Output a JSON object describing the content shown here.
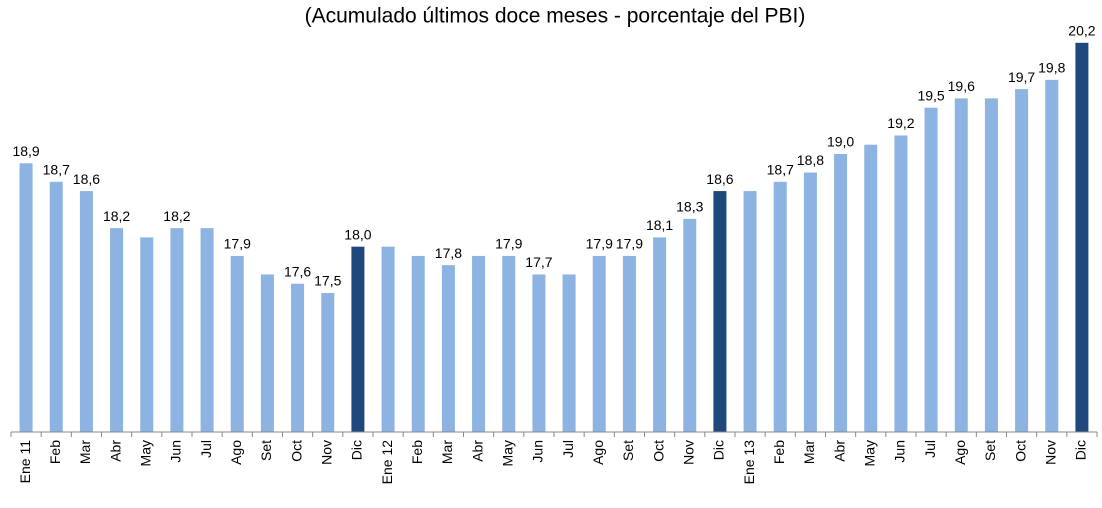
{
  "chart_data": {
    "type": "bar",
    "title": "(Acumulado últimos doce meses - porcentaje del PBI)",
    "categories": [
      "Ene 11",
      "Feb",
      "Mar",
      "Abr",
      "May",
      "Jun",
      "Jul",
      "Ago",
      "Set",
      "Oct",
      "Nov",
      "Dic",
      "Ene 12",
      "Feb",
      "Mar",
      "Abr",
      "May",
      "Jun",
      "Jul",
      "Ago",
      "Set",
      "Oct",
      "Nov",
      "Dic",
      "Ene 13",
      "Feb",
      "Mar",
      "Abr",
      "May",
      "Jun",
      "Jul",
      "Ago",
      "Set",
      "Oct",
      "Nov",
      "Dic"
    ],
    "values": [
      18.9,
      18.7,
      18.6,
      18.2,
      18.1,
      18.2,
      18.2,
      17.9,
      17.7,
      17.6,
      17.5,
      18.0,
      18.0,
      17.9,
      17.8,
      17.9,
      17.9,
      17.7,
      17.7,
      17.9,
      17.9,
      18.1,
      18.3,
      18.6,
      18.6,
      18.7,
      18.8,
      19.0,
      19.1,
      19.2,
      19.5,
      19.6,
      19.6,
      19.7,
      19.8,
      20.2
    ],
    "value_labels": [
      "18,9",
      "18,7",
      "18,6",
      "18,2",
      null,
      "18,2",
      null,
      "17,9",
      null,
      "17,6",
      "17,5",
      "18,0",
      null,
      null,
      "17,8",
      null,
      "17,9",
      "17,7",
      null,
      "17,9",
      "17,9",
      "18,1",
      "18,3",
      "18,6",
      null,
      "18,7",
      "18,8",
      "19,0",
      null,
      "19,2",
      "19,5",
      "19,6",
      null,
      "19,7",
      "19,8",
      "20,2"
    ],
    "colors": [
      "#8db3e2",
      "#8db3e2",
      "#8db3e2",
      "#8db3e2",
      "#8db3e2",
      "#8db3e2",
      "#8db3e2",
      "#8db3e2",
      "#8db3e2",
      "#8db3e2",
      "#8db3e2",
      "#1f497d",
      "#8db3e2",
      "#8db3e2",
      "#8db3e2",
      "#8db3e2",
      "#8db3e2",
      "#8db3e2",
      "#8db3e2",
      "#8db3e2",
      "#8db3e2",
      "#8db3e2",
      "#8db3e2",
      "#1f497d",
      "#8db3e2",
      "#8db3e2",
      "#8db3e2",
      "#8db3e2",
      "#8db3e2",
      "#8db3e2",
      "#8db3e2",
      "#8db3e2",
      "#8db3e2",
      "#8db3e2",
      "#8db3e2",
      "#1f497d"
    ],
    "ylim": [
      16,
      20.5
    ]
  }
}
